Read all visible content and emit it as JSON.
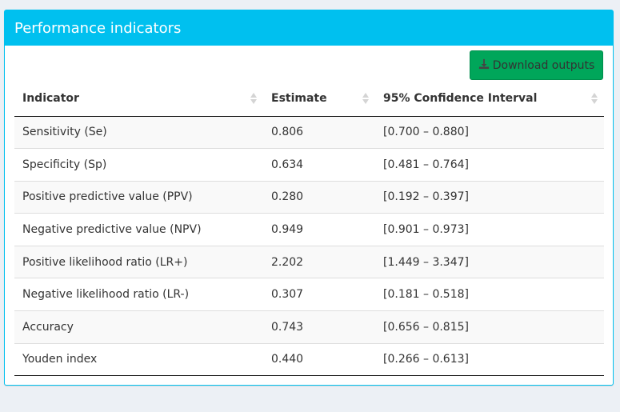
{
  "panel": {
    "title": "Performance indicators",
    "accent_color": "#00c0ef"
  },
  "toolbar": {
    "download_label": "Download outputs",
    "download_icon": "download-icon",
    "button_color": "#00a65a"
  },
  "table": {
    "columns": [
      {
        "label": "Indicator"
      },
      {
        "label": "Estimate"
      },
      {
        "label": "95% Confidence Interval"
      }
    ],
    "rows": [
      {
        "indicator": "Sensitivity (Se)",
        "estimate": "0.806",
        "ci": "[0.700 – 0.880]"
      },
      {
        "indicator": "Specificity (Sp)",
        "estimate": "0.634",
        "ci": "[0.481 – 0.764]"
      },
      {
        "indicator": "Positive predictive value (PPV)",
        "estimate": "0.280",
        "ci": "[0.192 – 0.397]"
      },
      {
        "indicator": "Negative predictive value (NPV)",
        "estimate": "0.949",
        "ci": "[0.901 – 0.973]"
      },
      {
        "indicator": "Positive likelihood ratio (LR+)",
        "estimate": "2.202",
        "ci": "[1.449 – 3.347]"
      },
      {
        "indicator": "Negative likelihood ratio (LR-)",
        "estimate": "0.307",
        "ci": "[0.181 – 0.518]"
      },
      {
        "indicator": "Accuracy",
        "estimate": "0.743",
        "ci": "[0.656 – 0.815]"
      },
      {
        "indicator": "Youden index",
        "estimate": "0.440",
        "ci": "[0.266 – 0.613]"
      }
    ]
  }
}
